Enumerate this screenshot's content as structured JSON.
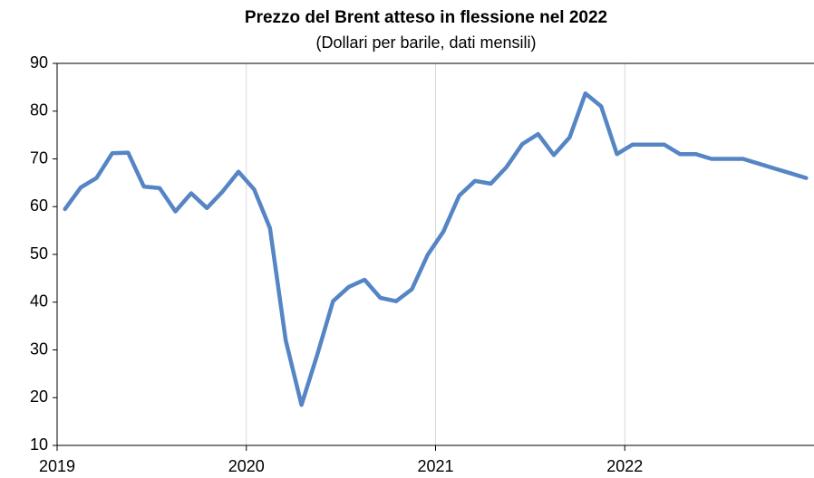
{
  "chart_data": {
    "type": "line",
    "title": "Prezzo del Brent atteso in flessione nel 2022",
    "subtitle": "(Dollari per barile, dati mensili)",
    "categories": [
      "2019",
      null,
      null,
      null,
      null,
      null,
      null,
      null,
      null,
      null,
      null,
      null,
      "2020",
      null,
      null,
      null,
      null,
      null,
      null,
      null,
      null,
      null,
      null,
      null,
      "2021",
      null,
      null,
      null,
      null,
      null,
      null,
      null,
      null,
      null,
      null,
      null,
      "2022",
      null,
      null,
      null,
      null,
      null,
      null,
      null,
      null,
      null,
      null,
      null
    ],
    "values": [
      59.5,
      64,
      66,
      71.2,
      71.3,
      64.2,
      63.9,
      59,
      62.8,
      59.7,
      63.2,
      67.3,
      63.6,
      55.5,
      32,
      18.5,
      29,
      40.2,
      43.2,
      44.7,
      40.9,
      40.2,
      42.7,
      49.9,
      54.8,
      62.3,
      65.4,
      64.8,
      68.3,
      73.1,
      75.2,
      70.8,
      74.5,
      83.7,
      81,
      71,
      73,
      73,
      73,
      71,
      71,
      70,
      70,
      70,
      69,
      68,
      67,
      66
    ],
    "color": "#5585c5",
    "ylim": [
      10,
      90
    ],
    "yticks": [
      10,
      20,
      30,
      40,
      50,
      60,
      70,
      80,
      90
    ],
    "grid": "x"
  }
}
